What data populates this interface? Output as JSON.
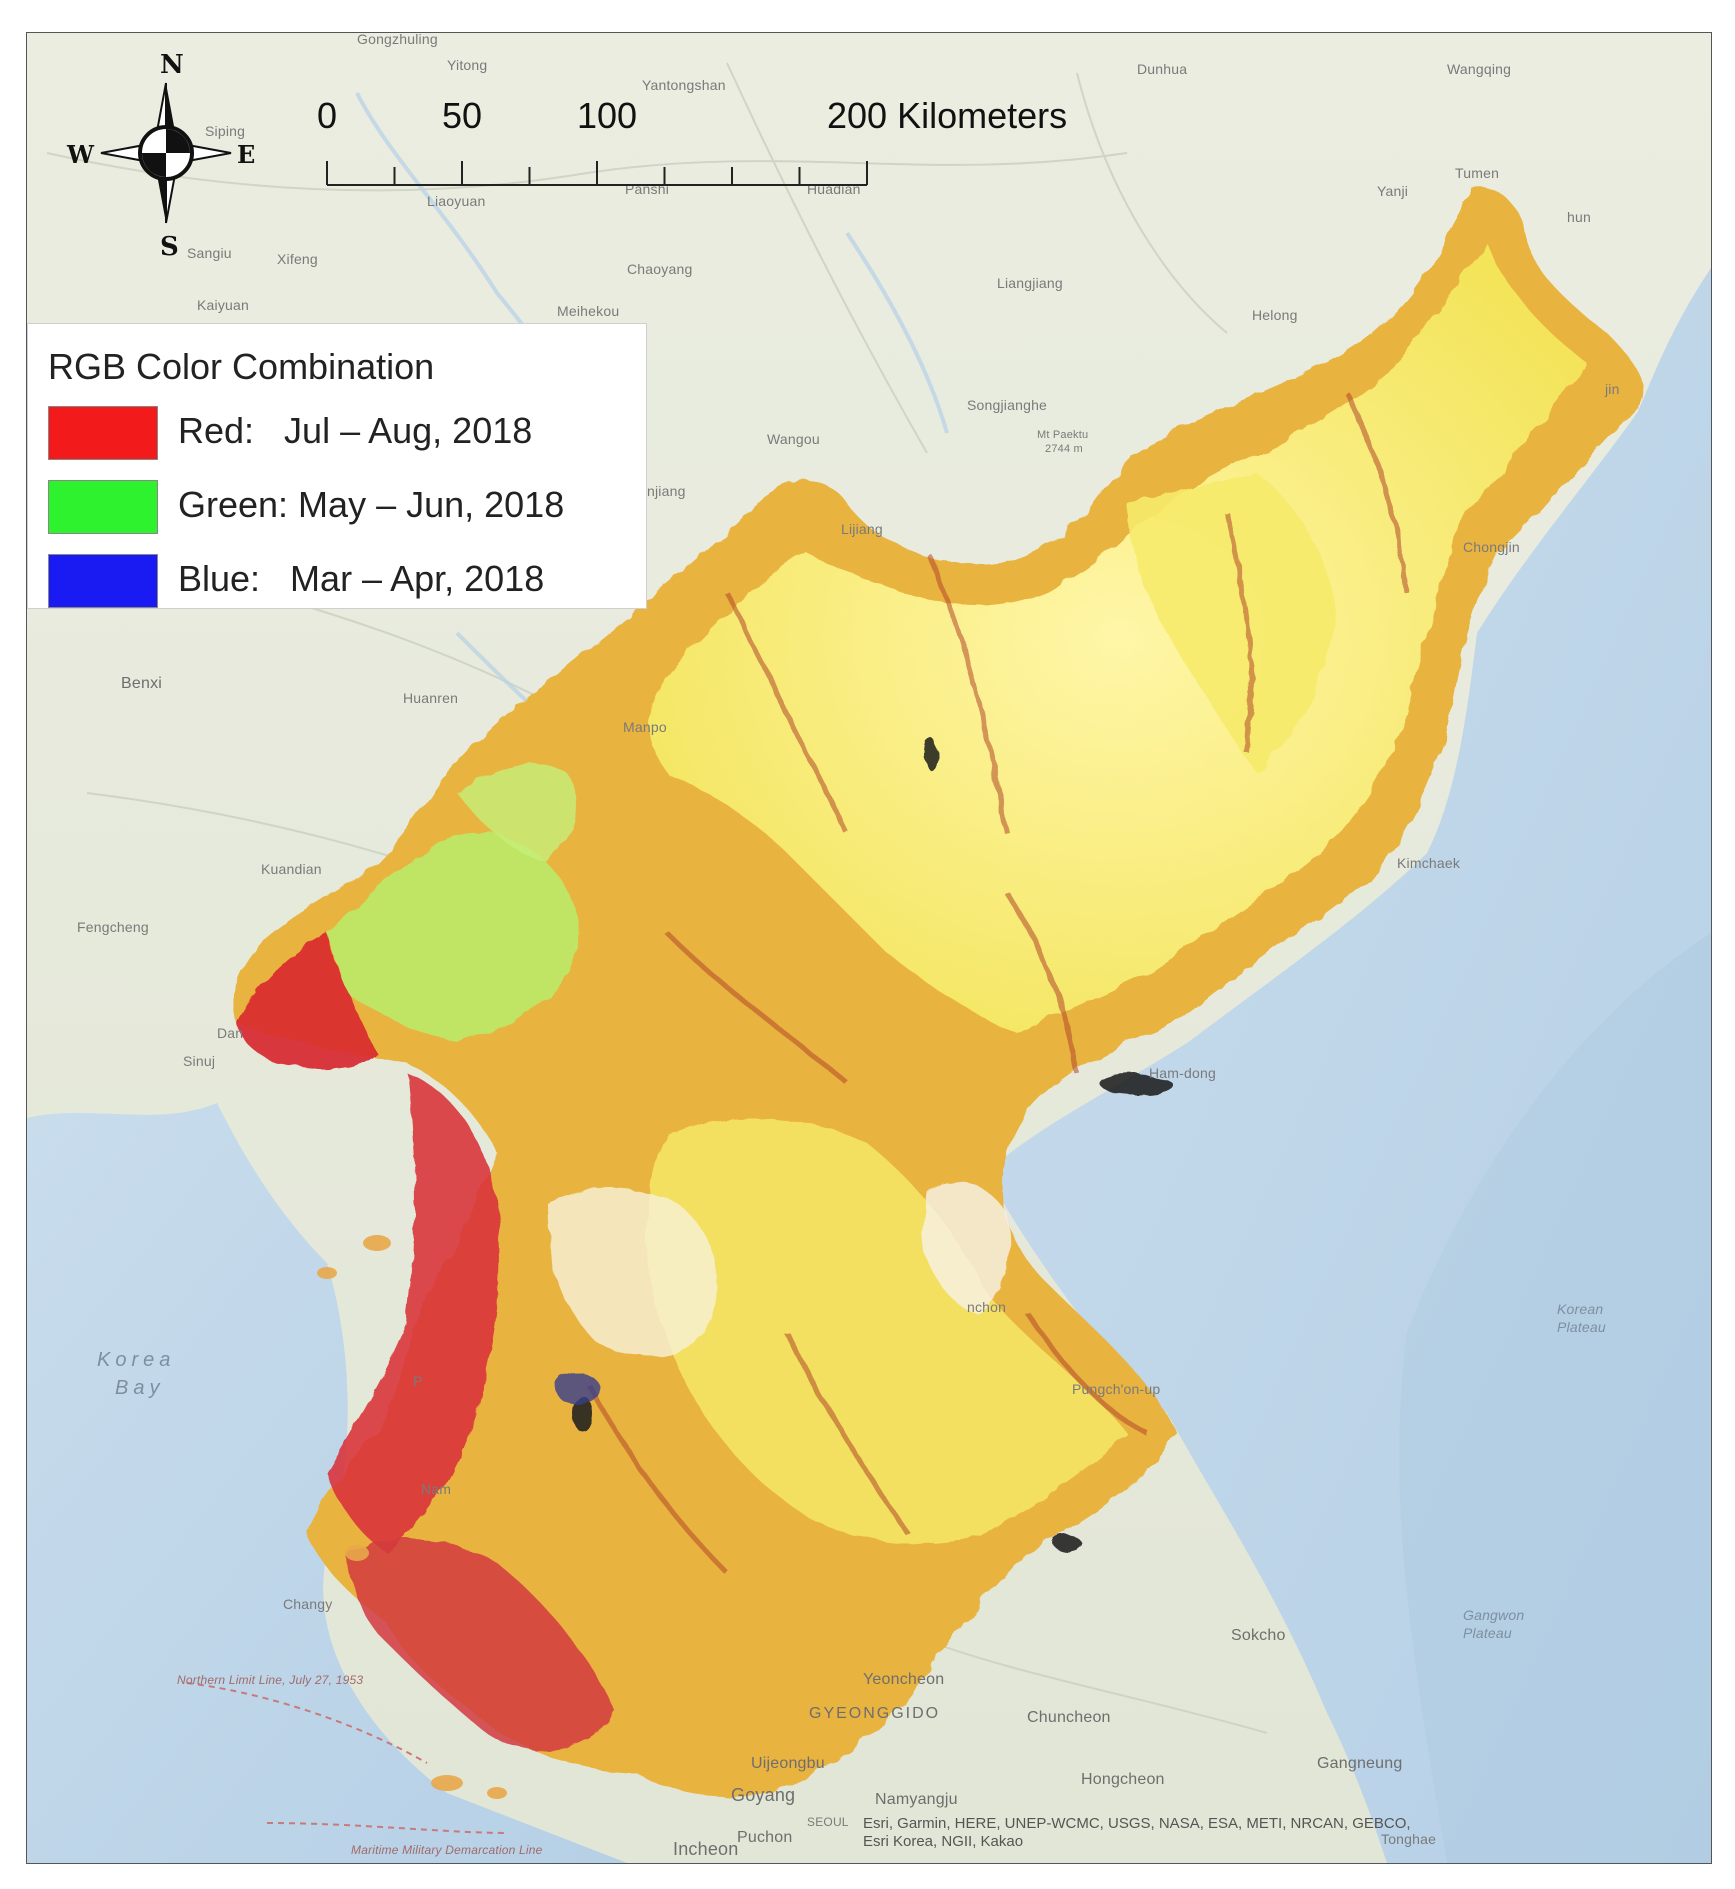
{
  "legend": {
    "title": "RGB Color Combination",
    "items": [
      {
        "name": "red",
        "label": "Red:   Jul – Aug, 2018",
        "color": "#f21a1a"
      },
      {
        "name": "green",
        "label": "Green: May – Jun, 2018",
        "color": "#2ef22e"
      },
      {
        "name": "blue",
        "label": "Blue:   Mar – Apr, 2018",
        "color": "#1a1af2"
      }
    ]
  },
  "scale_bar": {
    "labels": [
      "0",
      "50",
      "100",
      "200 Kilometers"
    ],
    "values_km": [
      0,
      50,
      100,
      200
    ]
  },
  "compass": {
    "n": "N",
    "s": "S",
    "e": "E",
    "w": "W"
  },
  "places": {
    "gongzhuling": "Gongzhuling",
    "yitong": "Yitong",
    "yantongshan": "Yantongshan",
    "dunhua": "Dunhua",
    "wangqing": "Wangqing",
    "siping": "Siping",
    "liaoyuan": "Liaoyuan",
    "panshi": "Panshi",
    "huadian": "Huadian",
    "yanji": "Yanji",
    "tumen": "Tumen",
    "hun": "hun",
    "sanghu": "Sangiu",
    "xifeng": "Xifeng",
    "chaoyang": "Chaoyang",
    "liangjiang": "Liangjiang",
    "helong": "Helong",
    "kaiyuan": "Kaiyuan",
    "meihekou": "Meihekou",
    "songjianghe": "Songjianghe",
    "wangou": "Wangou",
    "mtpaektu": "Mt Paektu",
    "mtpaektu_elev": "2744 m",
    "jin": "jin",
    "linjiang": "njiang",
    "lijiang": "Lijiang",
    "chongjin": "Chongjin",
    "benxi": "Benxi",
    "huanren": "Huanren",
    "manpo": "Manpo",
    "kuandian": "Kuandian",
    "fengcheng": "Fengcheng",
    "kimchaek": "Kimchaek",
    "dandong": "Dan",
    "sinuiju": "Sinuj",
    "hamhung": "Ham-dong",
    "hamhung_full": "Ham-dong",
    "korea_bay1": "Korea",
    "korea_bay2": "Bay",
    "pyongyang": "P",
    "hungnam": "nchon",
    "pungchon": "Pungch'on-up",
    "korean_plateau1": "Korean",
    "korean_plateau2": "Plateau",
    "nampo": "Nam",
    "changyon": "Changy",
    "sokcho": "Sokcho",
    "gangwon1": "Gangwon",
    "gangwon2": "Plateau",
    "yeoncheon": "Yeoncheon",
    "gyeonggido": "GYEONGGIDO",
    "chuncheon": "Chuncheon",
    "uijeongbu": "Uijeongbu",
    "hongcheon": "Hongcheon",
    "goyang": "Goyang",
    "namyangju": "Namyangju",
    "gangneung": "Gangneung",
    "seoul": "SEOUL",
    "bucheon": "Puchon",
    "incheon": "Incheon",
    "tonghae": "Tonghae",
    "nll": "Northern Limit Line, July 27, 1953",
    "mdl": "Maritime Military Demarcation Line"
  },
  "attribution": {
    "line1": "Esri, Garmin, HERE, UNEP-WCMC, USGS, NASA, ESA, METI, NRCAN, GEBCO,",
    "line2": "Esri Korea, NGII, Kakao"
  }
}
